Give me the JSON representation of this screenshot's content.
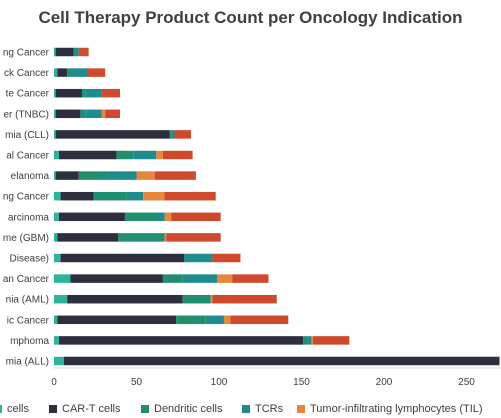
{
  "chart_data": {
    "type": "bar",
    "orientation": "horizontal",
    "stacked": true,
    "title": "Cell Therapy Product Count per Oncology Indication",
    "categories": [
      "ng Cancer",
      "ck Cancer",
      "te Cancer",
      "er (TNBC)",
      "mia (CLL)",
      "al Cancer",
      "elanoma",
      "ng Cancer",
      "arcinoma",
      "me (GBM)",
      "Disease)",
      "an Cancer",
      "nia (AML)",
      "ic Cancer",
      "mphoma",
      "mia (ALL)"
    ],
    "series": [
      {
        "name": "cells",
        "color": "#2ab49a",
        "values": [
          1,
          2,
          1,
          1,
          1,
          3,
          1,
          4,
          3,
          2,
          4,
          10,
          8,
          2,
          3,
          6
        ]
      },
      {
        "name": "CAR-T cells",
        "color": "#2e2f3e",
        "values": [
          11,
          6,
          16,
          15,
          69,
          35,
          14,
          20,
          40,
          37,
          75,
          56,
          70,
          72,
          148,
          264
        ]
      },
      {
        "name": "Dendritic cells",
        "color": "#1f8f6f",
        "values": [
          1,
          2,
          2,
          3,
          1,
          10,
          18,
          20,
          20,
          28,
          0,
          12,
          17,
          18,
          3,
          0
        ]
      },
      {
        "name": "TCRs",
        "color": "#1e8c8c",
        "values": [
          2,
          10,
          10,
          10,
          2,
          14,
          17,
          10,
          4,
          0,
          17,
          21,
          0,
          11,
          2,
          0
        ]
      },
      {
        "name": "Tumor-infiltrating lymphocytes (TIL)",
        "color": "#e8863c",
        "values": [
          0,
          0,
          0,
          2,
          0,
          4,
          11,
          13,
          4,
          1,
          0,
          9,
          1,
          4,
          1,
          0
        ]
      },
      {
        "name": "",
        "color": "#cf4a2c",
        "values": [
          6,
          11,
          11,
          9,
          10,
          18,
          25,
          31,
          30,
          33,
          17,
          22,
          39,
          35,
          22,
          0
        ]
      }
    ],
    "xlim": [
      0,
      270
    ],
    "xticks": [
      0,
      50,
      100,
      150,
      200,
      250
    ],
    "xlabel": "",
    "ylabel": "",
    "grid": false,
    "legend_position": "bottom"
  }
}
